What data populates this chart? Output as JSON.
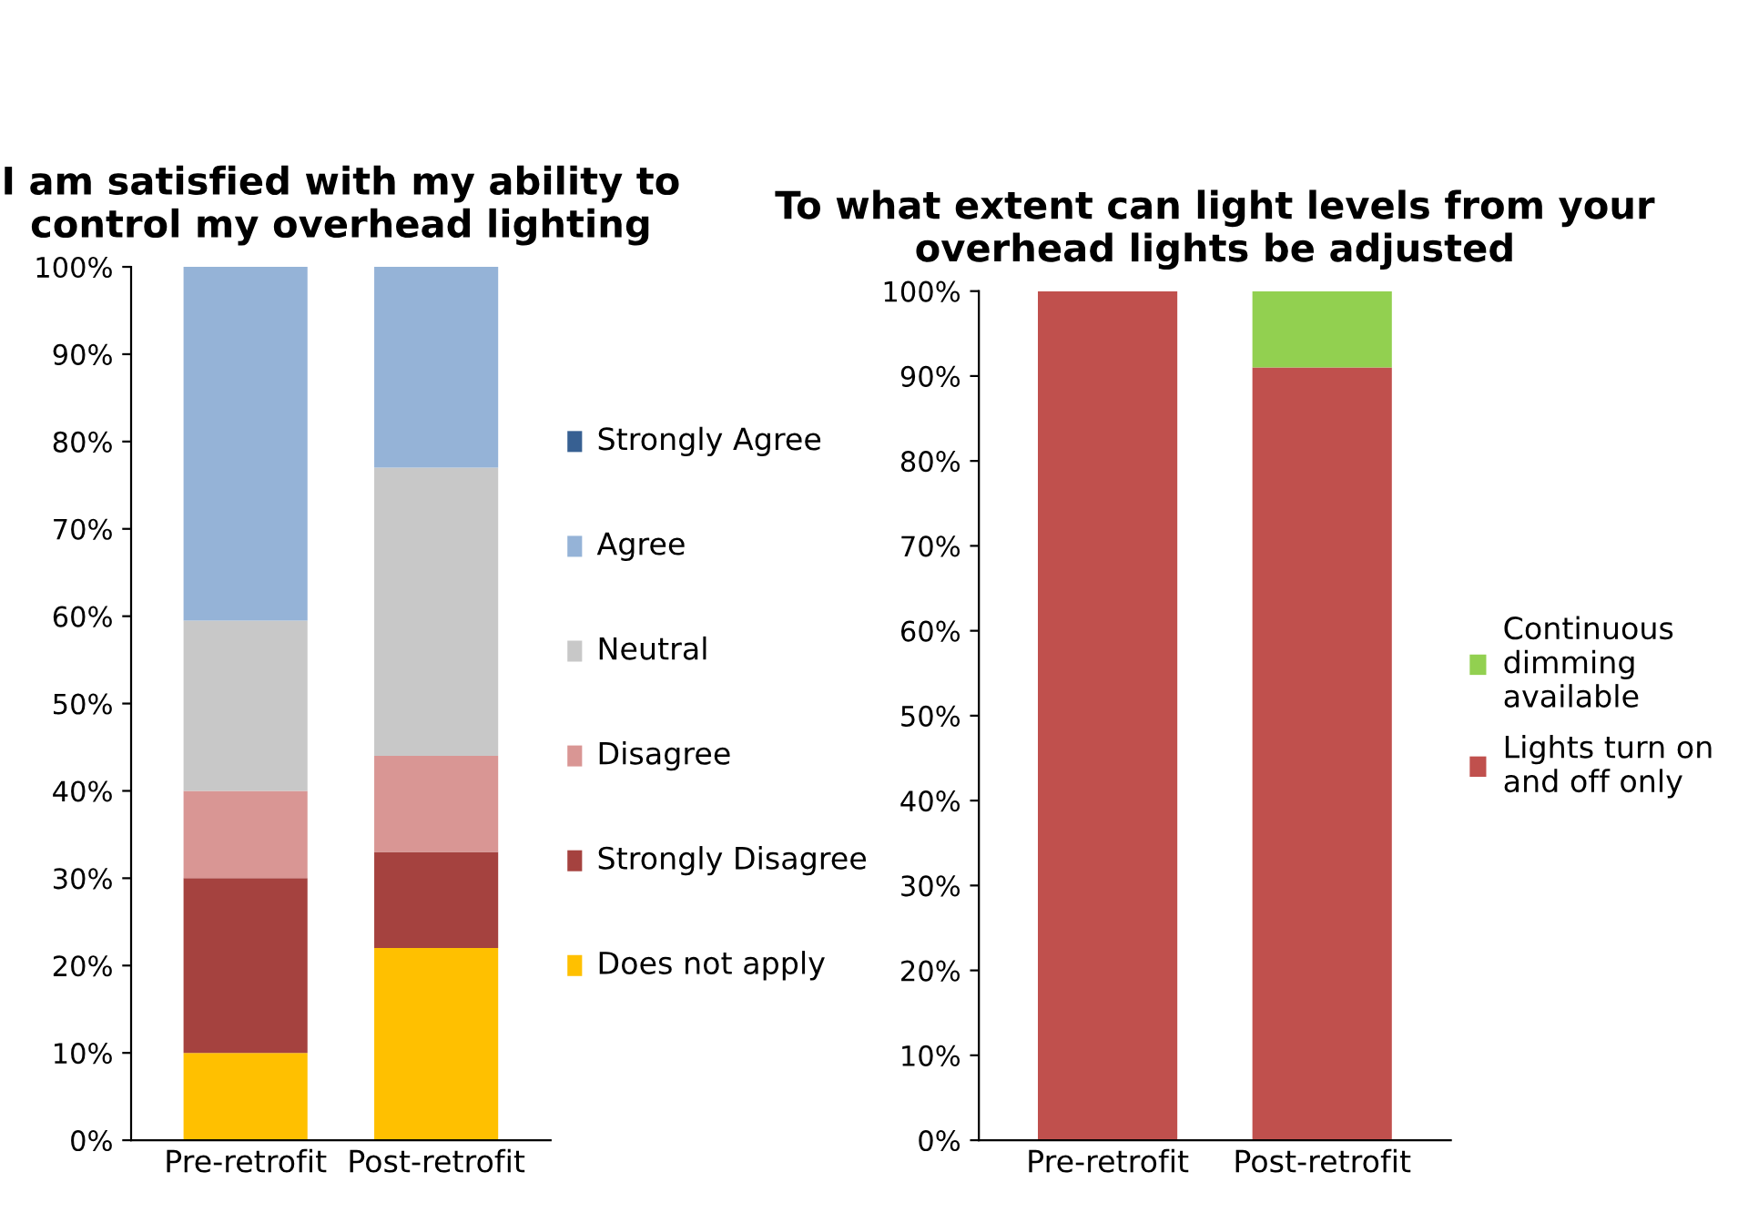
{
  "chart_data": [
    {
      "type": "bar",
      "stacked": true,
      "title": "I am satisfied with my ability to control my overhead lighting",
      "categories": [
        "Pre-retrofit",
        "Post-retrofit"
      ],
      "series": [
        {
          "name": "Does not apply",
          "color": "#ffc000",
          "values": [
            10,
            22
          ]
        },
        {
          "name": "Strongly Disagree",
          "color": "#a5423f",
          "values": [
            20,
            11
          ]
        },
        {
          "name": "Disagree",
          "color": "#d99694",
          "values": [
            10,
            11
          ]
        },
        {
          "name": "Neutral",
          "color": "#c8c8c8",
          "values": [
            19.5,
            33
          ]
        },
        {
          "name": "Agree",
          "color": "#95b3d7",
          "values": [
            40.5,
            23
          ]
        },
        {
          "name": "Strongly Agree",
          "color": "#376092",
          "values": [
            0,
            0
          ]
        }
      ],
      "ylim": [
        0,
        100
      ],
      "yticks": [
        {
          "value": 0,
          "label": "0%"
        },
        {
          "value": 10,
          "label": "10%"
        },
        {
          "value": 20,
          "label": "20%"
        },
        {
          "value": 30,
          "label": "30%"
        },
        {
          "value": 40,
          "label": "40%"
        },
        {
          "value": 50,
          "label": "50%"
        },
        {
          "value": 60,
          "label": "60%"
        },
        {
          "value": 70,
          "label": "70%"
        },
        {
          "value": 80,
          "label": "80%"
        },
        {
          "value": 90,
          "label": "90%"
        },
        {
          "value": 100,
          "label": "100%"
        }
      ],
      "grid": false,
      "legend": "right"
    },
    {
      "type": "bar",
      "stacked": true,
      "title": "To what extent can light levels from your overhead lights be adjusted",
      "categories": [
        "Pre-retrofit",
        "Post-retrofit"
      ],
      "series": [
        {
          "name": "Lights turn on and off only",
          "color": "#c0504d",
          "values": [
            100,
            91
          ]
        },
        {
          "name": "Continuous dimming available",
          "color": "#92d050",
          "values": [
            0,
            9
          ]
        }
      ],
      "ylim": [
        0,
        100
      ],
      "yticks": [
        {
          "value": 0,
          "label": "0%"
        },
        {
          "value": 10,
          "label": "10%"
        },
        {
          "value": 20,
          "label": "20%"
        },
        {
          "value": 30,
          "label": "30%"
        },
        {
          "value": 40,
          "label": "40%"
        },
        {
          "value": 50,
          "label": "50%"
        },
        {
          "value": 60,
          "label": "60%"
        },
        {
          "value": 70,
          "label": "70%"
        },
        {
          "value": 80,
          "label": "80%"
        },
        {
          "value": 90,
          "label": "90%"
        },
        {
          "value": 100,
          "label": "100%"
        }
      ],
      "grid": false,
      "legend": "right"
    }
  ]
}
